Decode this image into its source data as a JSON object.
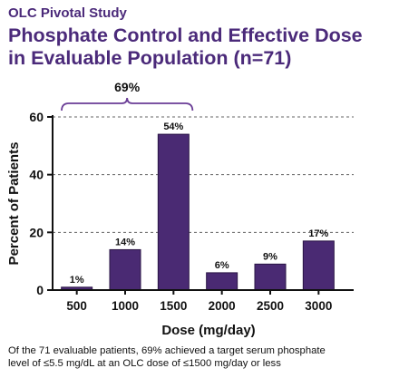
{
  "header": {
    "eyebrow": "OLC Pivotal Study",
    "title_line1": "Phosphate Control and Effective Dose",
    "title_line2": "in Evaluable Population (n=71)"
  },
  "caption": {
    "line1": "Of the 71 evaluable patients, 69% achieved a target serum phosphate",
    "line2": "level of ≤5.5 mg/dL at an OLC dose of ≤1500 mg/day or less"
  },
  "colors": {
    "title": "#4b2a7a",
    "bar": "#4a2a73",
    "bracket": "#6a3d96",
    "axis": "#111111",
    "grid": "#666666"
  },
  "chart_data": {
    "type": "bar",
    "categories": [
      "500",
      "1000",
      "1500",
      "2000",
      "2500",
      "3000"
    ],
    "values": [
      1,
      14,
      54,
      6,
      9,
      17
    ],
    "data_labels": [
      "1%",
      "14%",
      "54%",
      "6%",
      "9%",
      "17%"
    ],
    "xlabel": "Dose (mg/day)",
    "ylabel": "Percent of Patients",
    "ylim": [
      0,
      60
    ],
    "yticks": [
      0,
      20,
      40,
      60
    ],
    "grid": "dashed horizontal at 20, 40, 60",
    "annotation": {
      "label": "69%",
      "span_categories": [
        "500",
        "1500"
      ]
    }
  }
}
